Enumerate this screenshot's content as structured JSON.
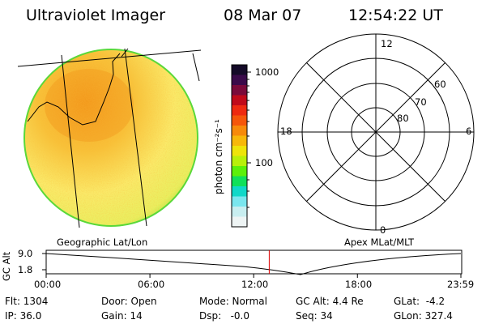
{
  "header": {
    "instrument": "Ultraviolet Imager",
    "date": "08 Mar 07",
    "time": "12:54:22 UT"
  },
  "colorbar": {
    "tick_high": "1000",
    "tick_low": "100",
    "unit_label": "photon cm⁻²s⁻¹",
    "colors": [
      "#140a28",
      "#3a0a4a",
      "#7a0a3a",
      "#c00a1a",
      "#ee2a10",
      "#f5560a",
      "#f78a0a",
      "#f7b80a",
      "#eee40a",
      "#b8f00a",
      "#5cf00a",
      "#10e05a",
      "#10d8c8",
      "#7ae6ee",
      "#c8eef0",
      "#eef4f4"
    ]
  },
  "polar_plot": {
    "mlt_labels": {
      "top": "12",
      "bottom": "0",
      "left": "18",
      "right": "6"
    },
    "lat_labels": [
      "60",
      "70",
      "80"
    ]
  },
  "map_labels": {
    "left": "Geographic Lat/Lon",
    "right": "Apex MLat/MLT"
  },
  "altitude_plot": {
    "axis_label": "GC Alt",
    "y_ticks": [
      "9.0",
      "1.8"
    ],
    "x_ticks": [
      "00:00",
      "06:00",
      "12:00",
      "18:00",
      "23:59"
    ],
    "marker_time": "12:54",
    "marker_color": "#dd0000"
  },
  "info": {
    "flt": "Flt: 1304",
    "ip": "IP: 36.0",
    "door": "Door: Open",
    "gain": "Gain: 14",
    "mode": "Mode: Normal",
    "dsp": "Dsp:   -0.0",
    "gc_alt": "GC Alt: 4.4 Re",
    "seq": "Seq: 34",
    "glat": "GLat:  -4.2",
    "glon": "GLon: 327.4"
  }
}
